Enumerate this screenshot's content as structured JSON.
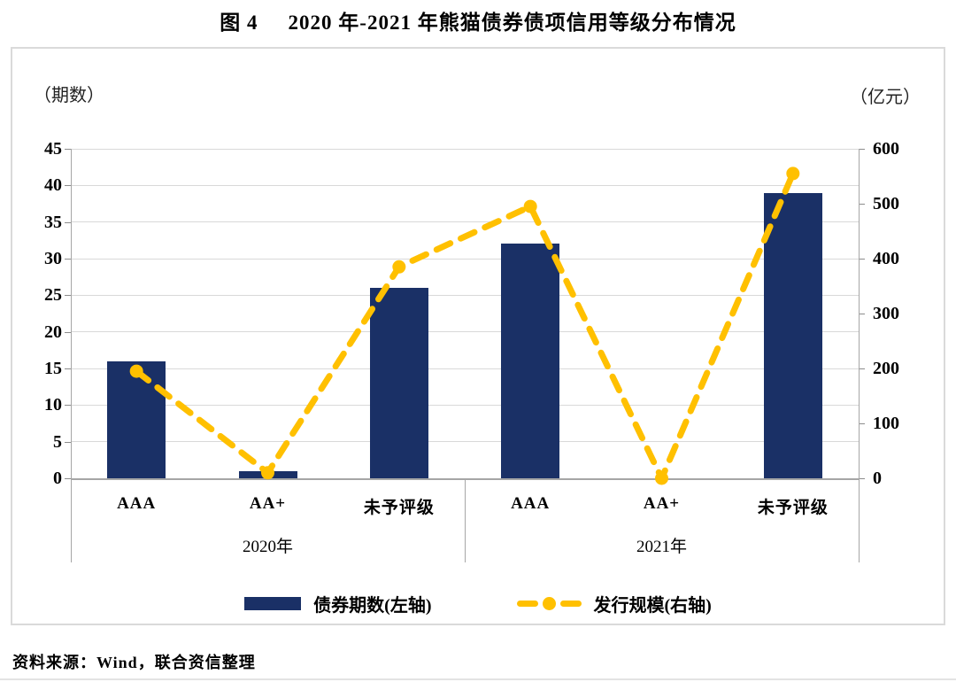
{
  "title": {
    "fig_label": "图 4",
    "text": "2020 年-2021 年熊猫债券债项信用等级分布情况"
  },
  "chart_data": {
    "type": "bar+line dual-axis",
    "left_axis": {
      "unit_label": "（期数）",
      "min": 0,
      "max": 45,
      "step": 5,
      "ticks": [
        0,
        5,
        10,
        15,
        20,
        25,
        30,
        35,
        40,
        45
      ]
    },
    "right_axis": {
      "unit_label": "（亿元）",
      "min": 0,
      "max": 600,
      "step": 100,
      "ticks": [
        0,
        100,
        200,
        300,
        400,
        500,
        600
      ]
    },
    "groups": [
      {
        "label": "2020年",
        "categories": [
          "AAA",
          "AA+",
          "未予评级"
        ]
      },
      {
        "label": "2021年",
        "categories": [
          "AAA",
          "AA+",
          "未予评级"
        ]
      }
    ],
    "series": [
      {
        "name": "债券期数(左轴)",
        "type": "bar",
        "axis": "left",
        "color": "#1a3066",
        "values": [
          16,
          1,
          26,
          32,
          0,
          39
        ]
      },
      {
        "name": "发行规模(右轴)",
        "type": "line",
        "axis": "right",
        "color": "#ffc000",
        "values": [
          195,
          10,
          385,
          495,
          0,
          555
        ]
      }
    ],
    "legend_position": "bottom",
    "grid": "horizontal"
  },
  "source_note": "资料来源：Wind，联合资信整理"
}
